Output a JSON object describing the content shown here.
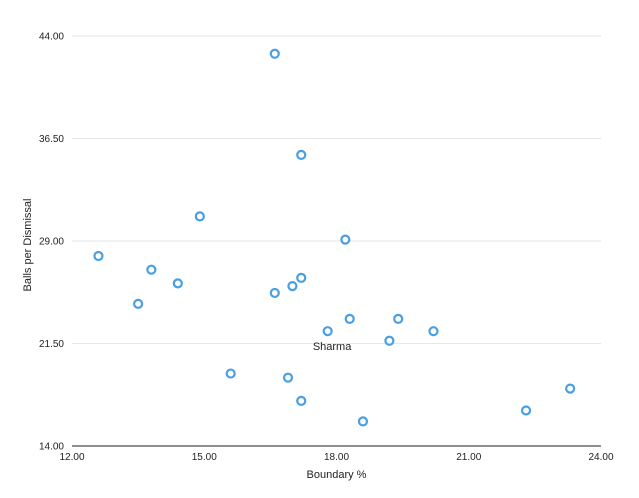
{
  "chart_data": {
    "type": "scatter",
    "title": "",
    "xlabel": "Boundary %",
    "ylabel": "Balls per Dismissal",
    "xlim": [
      12,
      24
    ],
    "ylim": [
      14,
      44
    ],
    "x_ticks": [
      "12.00",
      "15.00",
      "18.00",
      "21.00",
      "24.00"
    ],
    "y_ticks": [
      "14.00",
      "21.50",
      "29.00",
      "36.50",
      "44.00"
    ],
    "grid": "horizontal",
    "legend": "none",
    "point_color": "#4a9fe3",
    "points": [
      {
        "x": 16.6,
        "y": 42.7
      },
      {
        "x": 17.2,
        "y": 35.3
      },
      {
        "x": 14.9,
        "y": 30.8
      },
      {
        "x": 18.2,
        "y": 29.1
      },
      {
        "x": 12.6,
        "y": 27.9
      },
      {
        "x": 13.8,
        "y": 26.9
      },
      {
        "x": 14.4,
        "y": 25.9
      },
      {
        "x": 17.2,
        "y": 26.3
      },
      {
        "x": 17.0,
        "y": 25.7
      },
      {
        "x": 16.6,
        "y": 25.2
      },
      {
        "x": 13.5,
        "y": 24.4
      },
      {
        "x": 18.3,
        "y": 23.3
      },
      {
        "x": 19.4,
        "y": 23.3
      },
      {
        "x": 17.8,
        "y": 22.4
      },
      {
        "x": 20.2,
        "y": 22.4
      },
      {
        "x": 19.2,
        "y": 21.7
      },
      {
        "x": 15.6,
        "y": 19.3
      },
      {
        "x": 16.9,
        "y": 19.0
      },
      {
        "x": 17.2,
        "y": 17.3
      },
      {
        "x": 23.3,
        "y": 18.2
      },
      {
        "x": 22.3,
        "y": 16.6
      },
      {
        "x": 18.6,
        "y": 15.8
      }
    ],
    "annotations": [
      {
        "text": "Sharma",
        "x": 17.9,
        "y": 21.3
      }
    ]
  }
}
